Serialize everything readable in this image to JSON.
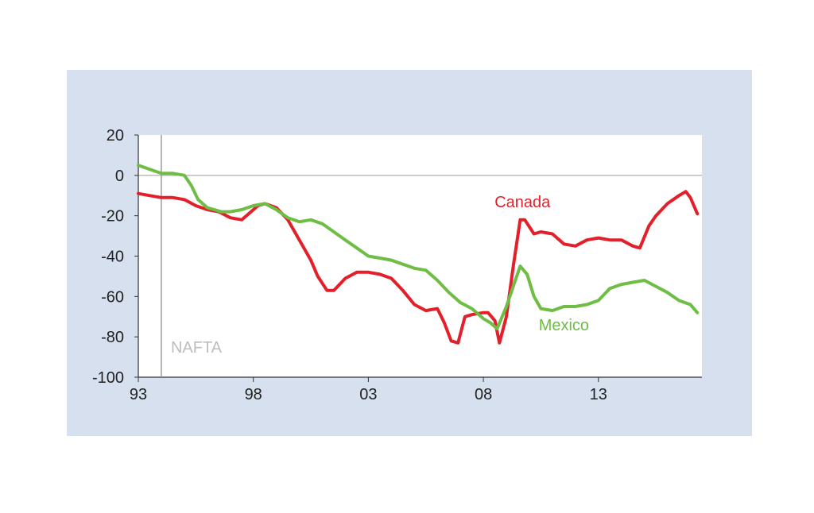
{
  "chart_data": {
    "type": "line",
    "title": "",
    "xlabel": "",
    "ylabel": "",
    "xlim": [
      1993,
      2017.5
    ],
    "ylim": [
      -100,
      20
    ],
    "x_ticks": [
      {
        "value": 1993,
        "label": "93"
      },
      {
        "value": 1998,
        "label": "98"
      },
      {
        "value": 2003,
        "label": "03"
      },
      {
        "value": 2008,
        "label": "08"
      },
      {
        "value": 2013,
        "label": "13"
      }
    ],
    "y_ticks": [
      {
        "value": 20,
        "label": "20"
      },
      {
        "value": 0,
        "label": "0"
      },
      {
        "value": -20,
        "label": "-20"
      },
      {
        "value": -40,
        "label": "-40"
      },
      {
        "value": -60,
        "label": "-60"
      },
      {
        "value": -80,
        "label": "-80"
      },
      {
        "value": -100,
        "label": "-100"
      }
    ],
    "grid": false,
    "legend": "none",
    "annotations": [
      {
        "text": "NAFTA",
        "x": 1994,
        "color": "#bdbdbd"
      }
    ],
    "series": [
      {
        "name": "Canada",
        "color": "#e3202a",
        "x": [
          1993.0,
          1993.5,
          1994.0,
          1994.5,
          1995.0,
          1995.5,
          1996.0,
          1996.5,
          1997.0,
          1997.5,
          1997.8,
          1998.2,
          1998.5,
          1999.0,
          1999.5,
          2000.0,
          2000.5,
          2000.8,
          2001.2,
          2001.5,
          2002.0,
          2002.5,
          2003.0,
          2003.5,
          2004.0,
          2004.5,
          2005.0,
          2005.5,
          2006.0,
          2006.3,
          2006.6,
          2006.9,
          2007.2,
          2007.5,
          2008.0,
          2008.2,
          2008.5,
          2008.7,
          2009.0,
          2009.3,
          2009.6,
          2009.8,
          2010.2,
          2010.5,
          2011.0,
          2011.5,
          2012.0,
          2012.5,
          2013.0,
          2013.5,
          2014.0,
          2014.5,
          2014.8,
          2015.2,
          2015.5,
          2016.0,
          2016.5,
          2016.8,
          2017.0,
          2017.3
        ],
        "values": [
          -9,
          -10,
          -11,
          -11,
          -12,
          -15,
          -17,
          -18,
          -21,
          -22,
          -19,
          -15,
          -14,
          -16,
          -22,
          -32,
          -42,
          -50,
          -57,
          -57,
          -51,
          -48,
          -48,
          -49,
          -51,
          -57,
          -64,
          -67,
          -66,
          -73,
          -82,
          -83,
          -70,
          -69,
          -68,
          -68,
          -72,
          -83,
          -70,
          -45,
          -22,
          -22,
          -29,
          -28,
          -29,
          -34,
          -35,
          -32,
          -31,
          -32,
          -32,
          -35,
          -36,
          -25,
          -20,
          -14,
          -10,
          -8,
          -11,
          -19
        ]
      },
      {
        "name": "Mexico",
        "color": "#6ebd44",
        "x": [
          1993.0,
          1993.5,
          1994.0,
          1994.5,
          1995.0,
          1995.3,
          1995.6,
          1996.0,
          1996.3,
          1996.6,
          1997.0,
          1997.5,
          1998.0,
          1998.5,
          1999.0,
          1999.5,
          2000.0,
          2000.5,
          2001.0,
          2001.5,
          2002.0,
          2002.5,
          2003.0,
          2003.5,
          2004.0,
          2004.5,
          2005.0,
          2005.5,
          2006.0,
          2006.5,
          2007.0,
          2007.5,
          2008.0,
          2008.3,
          2008.6,
          2009.0,
          2009.3,
          2009.6,
          2009.9,
          2010.2,
          2010.5,
          2011.0,
          2011.5,
          2012.0,
          2012.5,
          2013.0,
          2013.5,
          2014.0,
          2014.5,
          2015.0,
          2015.5,
          2016.0,
          2016.5,
          2017.0,
          2017.3
        ],
        "values": [
          5,
          3,
          1,
          1,
          0,
          -5,
          -12,
          -16,
          -17,
          -18,
          -18,
          -17,
          -15,
          -14,
          -17,
          -21,
          -23,
          -22,
          -24,
          -28,
          -32,
          -36,
          -40,
          -41,
          -42,
          -44,
          -46,
          -47,
          -52,
          -58,
          -63,
          -66,
          -71,
          -73,
          -76,
          -65,
          -55,
          -45,
          -49,
          -60,
          -66,
          -67,
          -65,
          -65,
          -64,
          -62,
          -56,
          -54,
          -53,
          -52,
          -55,
          -58,
          -62,
          -64,
          -68
        ]
      }
    ]
  }
}
